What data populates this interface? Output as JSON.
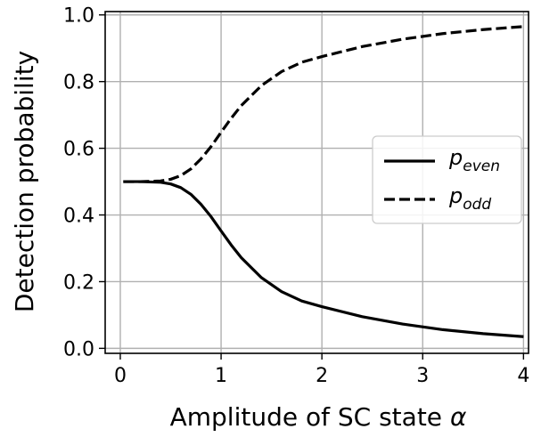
{
  "chart_data": {
    "type": "line",
    "title": "",
    "xlabel": "Amplitude of SC state",
    "xlabel_symbol": "α",
    "ylabel": "Detection probability",
    "xlim": [
      -0.15,
      4.05
    ],
    "ylim": [
      -0.015,
      1.01
    ],
    "x_ticks": [
      "0",
      "1",
      "2",
      "3",
      "4"
    ],
    "y_ticks": [
      "0.0",
      "0.2",
      "0.4",
      "0.6",
      "0.8",
      "1.0"
    ],
    "grid": true,
    "legend_position": "center-right",
    "series": [
      {
        "name": "even",
        "legend_symbol": "p",
        "legend_subscript": "even",
        "line_style": "solid",
        "color": "#000000",
        "x": [
          0.03,
          0.2,
          0.4,
          0.5,
          0.6,
          0.7,
          0.8,
          0.9,
          1.0,
          1.1,
          1.2,
          1.4,
          1.6,
          1.8,
          2.0,
          2.4,
          2.8,
          3.2,
          3.6,
          4.0
        ],
        "y": [
          0.5,
          0.5,
          0.498,
          0.493,
          0.482,
          0.462,
          0.432,
          0.395,
          0.352,
          0.31,
          0.272,
          0.212,
          0.17,
          0.142,
          0.125,
          0.095,
          0.073,
          0.056,
          0.044,
          0.035
        ]
      },
      {
        "name": "odd",
        "legend_symbol": "p",
        "legend_subscript": "odd",
        "line_style": "dashed",
        "color": "#000000",
        "x": [
          0.03,
          0.2,
          0.4,
          0.5,
          0.6,
          0.7,
          0.8,
          0.9,
          1.0,
          1.1,
          1.2,
          1.4,
          1.6,
          1.8,
          2.0,
          2.4,
          2.8,
          3.2,
          3.6,
          4.0
        ],
        "y": [
          0.5,
          0.5,
          0.502,
          0.507,
          0.518,
          0.538,
          0.568,
          0.605,
          0.648,
          0.69,
          0.728,
          0.788,
          0.83,
          0.858,
          0.875,
          0.905,
          0.927,
          0.944,
          0.956,
          0.965
        ]
      }
    ]
  }
}
